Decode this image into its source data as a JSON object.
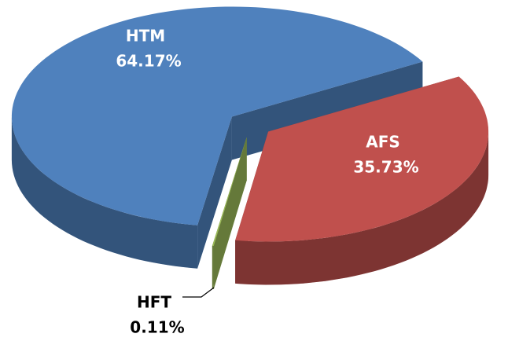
{
  "chart_data": {
    "type": "pie",
    "categories": [
      "HTM",
      "AFS",
      "HFT"
    ],
    "values": [
      64.17,
      35.73,
      0.11
    ],
    "value_labels": [
      "64.17%",
      "35.73%",
      "0.11%"
    ],
    "colors": [
      "#4f81bd",
      "#c0504d",
      "#9bbb59"
    ]
  }
}
